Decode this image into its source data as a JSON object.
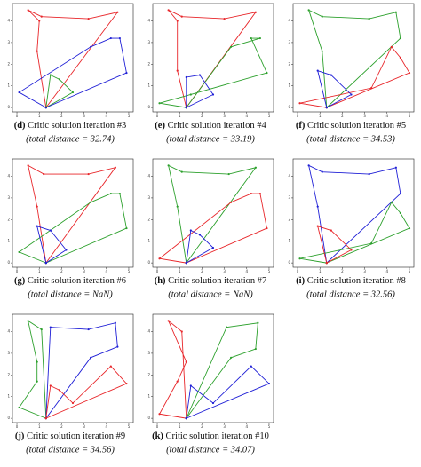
{
  "chart_data": [
    {
      "type": "route",
      "label": "(d)",
      "caption": "Critic solution iteration #3",
      "subcaption": "(total distance = 32.74)",
      "xlim": [
        -0.2,
        5.2
      ],
      "ylim": [
        -0.2,
        4.8
      ],
      "xticks": [
        0,
        1,
        2,
        3,
        4,
        5
      ],
      "yticks": [
        0,
        1,
        2,
        3,
        4
      ],
      "series": [
        {
          "color": "#e8262a",
          "x": [
            1.3,
            0.9,
            1.0,
            0.5,
            1.1,
            3.2,
            4.5,
            1.3
          ],
          "y": [
            0,
            2.6,
            4.0,
            4.5,
            4.2,
            4.1,
            4.4,
            0
          ]
        },
        {
          "color": "#2ca02c",
          "x": [
            1.3,
            1.5,
            1.9,
            2.5,
            1.3
          ],
          "y": [
            0,
            1.5,
            1.3,
            0.7,
            0
          ]
        },
        {
          "color": "#1f1fd6",
          "x": [
            1.3,
            0.1,
            3.3,
            4.2,
            4.6,
            4.9,
            1.3
          ],
          "y": [
            0,
            0.7,
            2.8,
            3.2,
            3.2,
            1.6,
            0
          ]
        }
      ]
    },
    {
      "type": "route",
      "label": "(e)",
      "caption": "Critic solution iteration #4",
      "subcaption": "(total distance = 33.19)",
      "xlim": [
        -0.2,
        5.2
      ],
      "ylim": [
        -0.2,
        4.8
      ],
      "xticks": [
        0,
        1,
        2,
        3,
        4,
        5
      ],
      "yticks": [
        0,
        1,
        2,
        3,
        4
      ],
      "series": [
        {
          "color": "#e8262a",
          "x": [
            1.3,
            0.9,
            0.9,
            0.5,
            1.1,
            3.0,
            4.4,
            1.3
          ],
          "y": [
            0,
            1.7,
            4.0,
            4.5,
            4.2,
            4.1,
            4.4,
            0
          ]
        },
        {
          "color": "#2ca02c",
          "x": [
            1.3,
            0.1,
            1.5,
            4.9,
            4.2,
            4.6,
            3.3,
            1.3
          ],
          "y": [
            0,
            0.2,
            0.6,
            1.6,
            3.2,
            3.2,
            2.8,
            0
          ]
        },
        {
          "color": "#1f1fd6",
          "x": [
            1.3,
            1.3,
            1.9,
            2.5,
            1.3
          ],
          "y": [
            0,
            1.4,
            1.5,
            0.6,
            0
          ]
        }
      ]
    },
    {
      "type": "route",
      "label": "(f)",
      "caption": "Critic solution iteration #5",
      "subcaption": "(total distance = 34.53)",
      "xlim": [
        -0.2,
        5.2
      ],
      "ylim": [
        -0.2,
        4.8
      ],
      "xticks": [
        0,
        1,
        2,
        3,
        4,
        5
      ],
      "yticks": [
        0,
        1,
        2,
        3,
        4
      ],
      "series": [
        {
          "color": "#2ca02c",
          "x": [
            1.3,
            1.1,
            0.5,
            1.1,
            3.2,
            4.4,
            4.6,
            1.3
          ],
          "y": [
            0,
            2.6,
            4.5,
            4.2,
            4.1,
            4.4,
            3.2,
            0
          ]
        },
        {
          "color": "#e8262a",
          "x": [
            1.3,
            0.1,
            3.3,
            4.2,
            4.6,
            5.0,
            1.3
          ],
          "y": [
            0,
            0.2,
            0.9,
            2.8,
            2.3,
            1.6,
            0
          ]
        },
        {
          "color": "#1f1fd6",
          "x": [
            1.3,
            0.9,
            1.5,
            2.4,
            1.3
          ],
          "y": [
            0,
            1.7,
            1.5,
            0.6,
            0
          ]
        }
      ]
    },
    {
      "type": "route",
      "label": "(g)",
      "caption": "Critic solution iteration #6",
      "subcaption": "(total distance = NaN)",
      "xlim": [
        -0.2,
        5.2
      ],
      "ylim": [
        -0.2,
        4.8
      ],
      "xticks": [
        0,
        1,
        2,
        3,
        4,
        5
      ],
      "yticks": [
        0,
        1,
        2,
        3,
        4
      ],
      "series": [
        {
          "color": "#e8262a",
          "x": [
            1.3,
            0.9,
            0.5,
            1.2,
            3.2,
            4.4,
            1.3
          ],
          "y": [
            0,
            2.6,
            4.5,
            4.1,
            4.1,
            4.4,
            0
          ]
        },
        {
          "color": "#2ca02c",
          "x": [
            1.3,
            0.1,
            3.3,
            4.2,
            4.6,
            4.9,
            1.3
          ],
          "y": [
            0,
            0.5,
            2.8,
            3.2,
            3.2,
            1.6,
            0
          ]
        },
        {
          "color": "#1f1fd6",
          "x": [
            1.3,
            0.9,
            1.5,
            2.2,
            1.3
          ],
          "y": [
            0,
            1.7,
            1.5,
            0.6,
            0
          ]
        }
      ]
    },
    {
      "type": "route",
      "label": "(h)",
      "caption": "Critic solution iteration #7",
      "subcaption": "(total distance = NaN)",
      "xlim": [
        -0.2,
        5.2
      ],
      "ylim": [
        -0.2,
        4.8
      ],
      "xticks": [
        0,
        1,
        2,
        3,
        4,
        5
      ],
      "yticks": [
        0,
        1,
        2,
        3,
        4
      ],
      "series": [
        {
          "color": "#2ca02c",
          "x": [
            1.3,
            0.9,
            0.5,
            1.1,
            3.2,
            4.4,
            1.3
          ],
          "y": [
            0,
            2.6,
            4.5,
            4.2,
            4.1,
            4.4,
            0
          ]
        },
        {
          "color": "#e8262a",
          "x": [
            1.3,
            0.1,
            3.3,
            4.2,
            4.6,
            4.9,
            1.3
          ],
          "y": [
            0,
            0.2,
            2.8,
            3.2,
            3.2,
            1.6,
            0
          ]
        },
        {
          "color": "#1f1fd6",
          "x": [
            1.3,
            1.5,
            1.9,
            2.5,
            1.3
          ],
          "y": [
            0,
            1.5,
            1.3,
            0.7,
            0
          ]
        }
      ]
    },
    {
      "type": "route",
      "label": "(i)",
      "caption": "Critic solution iteration #8",
      "subcaption": "(total distance = 32.56)",
      "xlim": [
        -0.2,
        5.2
      ],
      "ylim": [
        -0.2,
        4.8
      ],
      "xticks": [
        0,
        1,
        2,
        3,
        4,
        5
      ],
      "yticks": [
        0,
        1,
        2,
        3,
        4
      ],
      "series": [
        {
          "color": "#1f1fd6",
          "x": [
            1.3,
            0.9,
            0.5,
            1.1,
            3.2,
            4.4,
            4.6,
            1.3
          ],
          "y": [
            0,
            2.6,
            4.5,
            4.2,
            4.1,
            4.4,
            3.2,
            0
          ]
        },
        {
          "color": "#2ca02c",
          "x": [
            1.3,
            0.1,
            3.3,
            4.2,
            4.6,
            5.0,
            1.3
          ],
          "y": [
            0,
            0.2,
            0.9,
            2.8,
            2.3,
            1.6,
            0
          ]
        },
        {
          "color": "#e8262a",
          "x": [
            1.3,
            0.9,
            1.5,
            2.4,
            1.3
          ],
          "y": [
            0,
            1.7,
            1.5,
            0.6,
            0
          ]
        }
      ]
    },
    {
      "type": "route",
      "label": "(j)",
      "caption": "Critic solution iteration #9",
      "subcaption": "(total distance = 34.56)",
      "xlim": [
        -0.2,
        5.2
      ],
      "ylim": [
        -0.2,
        4.8
      ],
      "xticks": [
        0,
        1,
        2,
        3,
        4,
        5
      ],
      "yticks": [
        0,
        1,
        2,
        3,
        4
      ],
      "series": [
        {
          "color": "#2ca02c",
          "x": [
            1.3,
            0.1,
            0.9,
            0.9,
            0.5,
            1.1,
            1.3
          ],
          "y": [
            0,
            0.5,
            1.7,
            2.6,
            4.5,
            4.1,
            0
          ]
        },
        {
          "color": "#1f1fd6",
          "x": [
            1.3,
            1.5,
            3.2,
            4.4,
            4.5,
            3.3,
            1.3
          ],
          "y": [
            0,
            4.2,
            4.1,
            4.4,
            3.3,
            2.8,
            0
          ]
        },
        {
          "color": "#e8262a",
          "x": [
            1.3,
            1.5,
            1.9,
            2.5,
            4.2,
            4.9,
            1.3
          ],
          "y": [
            0,
            1.5,
            1.3,
            0.7,
            2.4,
            1.6,
            0
          ]
        }
      ]
    },
    {
      "type": "route",
      "label": "(k)",
      "caption": "Critic solution iteration #10",
      "subcaption": "(total distance = 34.07)",
      "xlim": [
        -0.2,
        5.2
      ],
      "ylim": [
        -0.2,
        4.8
      ],
      "xticks": [
        0,
        1,
        2,
        3,
        4,
        5
      ],
      "yticks": [
        0,
        1,
        2,
        3,
        4
      ],
      "series": [
        {
          "color": "#e8262a",
          "x": [
            1.3,
            0.1,
            0.9,
            1.3,
            0.5,
            1.1,
            1.3
          ],
          "y": [
            0,
            0.2,
            1.7,
            2.6,
            4.5,
            4.0,
            0
          ]
        },
        {
          "color": "#2ca02c",
          "x": [
            1.3,
            3.3,
            4.4,
            4.5,
            3.1,
            1.3
          ],
          "y": [
            0,
            2.8,
            3.2,
            4.4,
            4.2,
            0
          ]
        },
        {
          "color": "#1f1fd6",
          "x": [
            1.3,
            1.5,
            2.5,
            4.2,
            5.0,
            1.3
          ],
          "y": [
            0,
            1.5,
            0.7,
            2.4,
            1.6,
            0
          ]
        }
      ]
    }
  ]
}
